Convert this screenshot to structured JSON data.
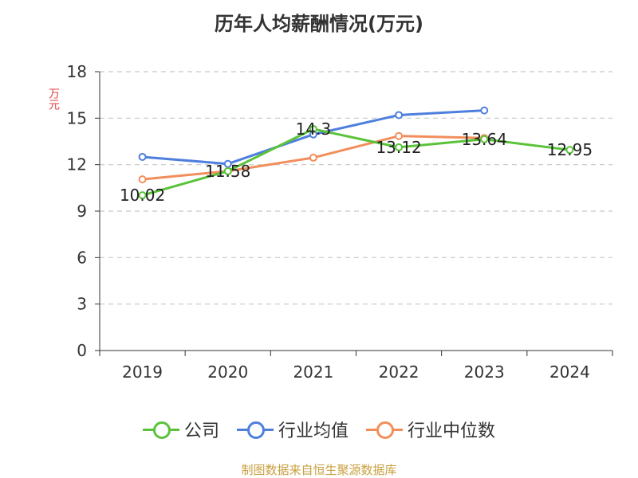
{
  "title": "历年人均薪酬情况(万元)",
  "source": "制图数据来自恒生聚源数据库",
  "chart_data": {
    "type": "line",
    "title": "历年人均薪酬情况(万元)",
    "ylabel": "万元",
    "xlabel": "",
    "ylim": [
      0,
      18
    ],
    "yticks": [
      0,
      3,
      6,
      9,
      12,
      15,
      18
    ],
    "grid": true,
    "legend_position": "bottom",
    "categories": [
      "2019",
      "2020",
      "2021",
      "2022",
      "2023",
      "2024"
    ],
    "series": [
      {
        "name": "公司",
        "color": "#5ac33a",
        "values": [
          10.02,
          11.58,
          14.3,
          13.12,
          13.64,
          12.95
        ],
        "labels": [
          "10.02",
          "11.58",
          "14.3",
          "13.12",
          "13.64",
          "12.95"
        ]
      },
      {
        "name": "行业均值",
        "color": "#4f7fdd",
        "values": [
          12.5,
          12.05,
          13.95,
          15.2,
          15.5,
          null
        ]
      },
      {
        "name": "行业中位数",
        "color": "#f28e5c",
        "values": [
          11.05,
          11.58,
          12.45,
          13.85,
          13.72,
          null
        ]
      }
    ]
  }
}
